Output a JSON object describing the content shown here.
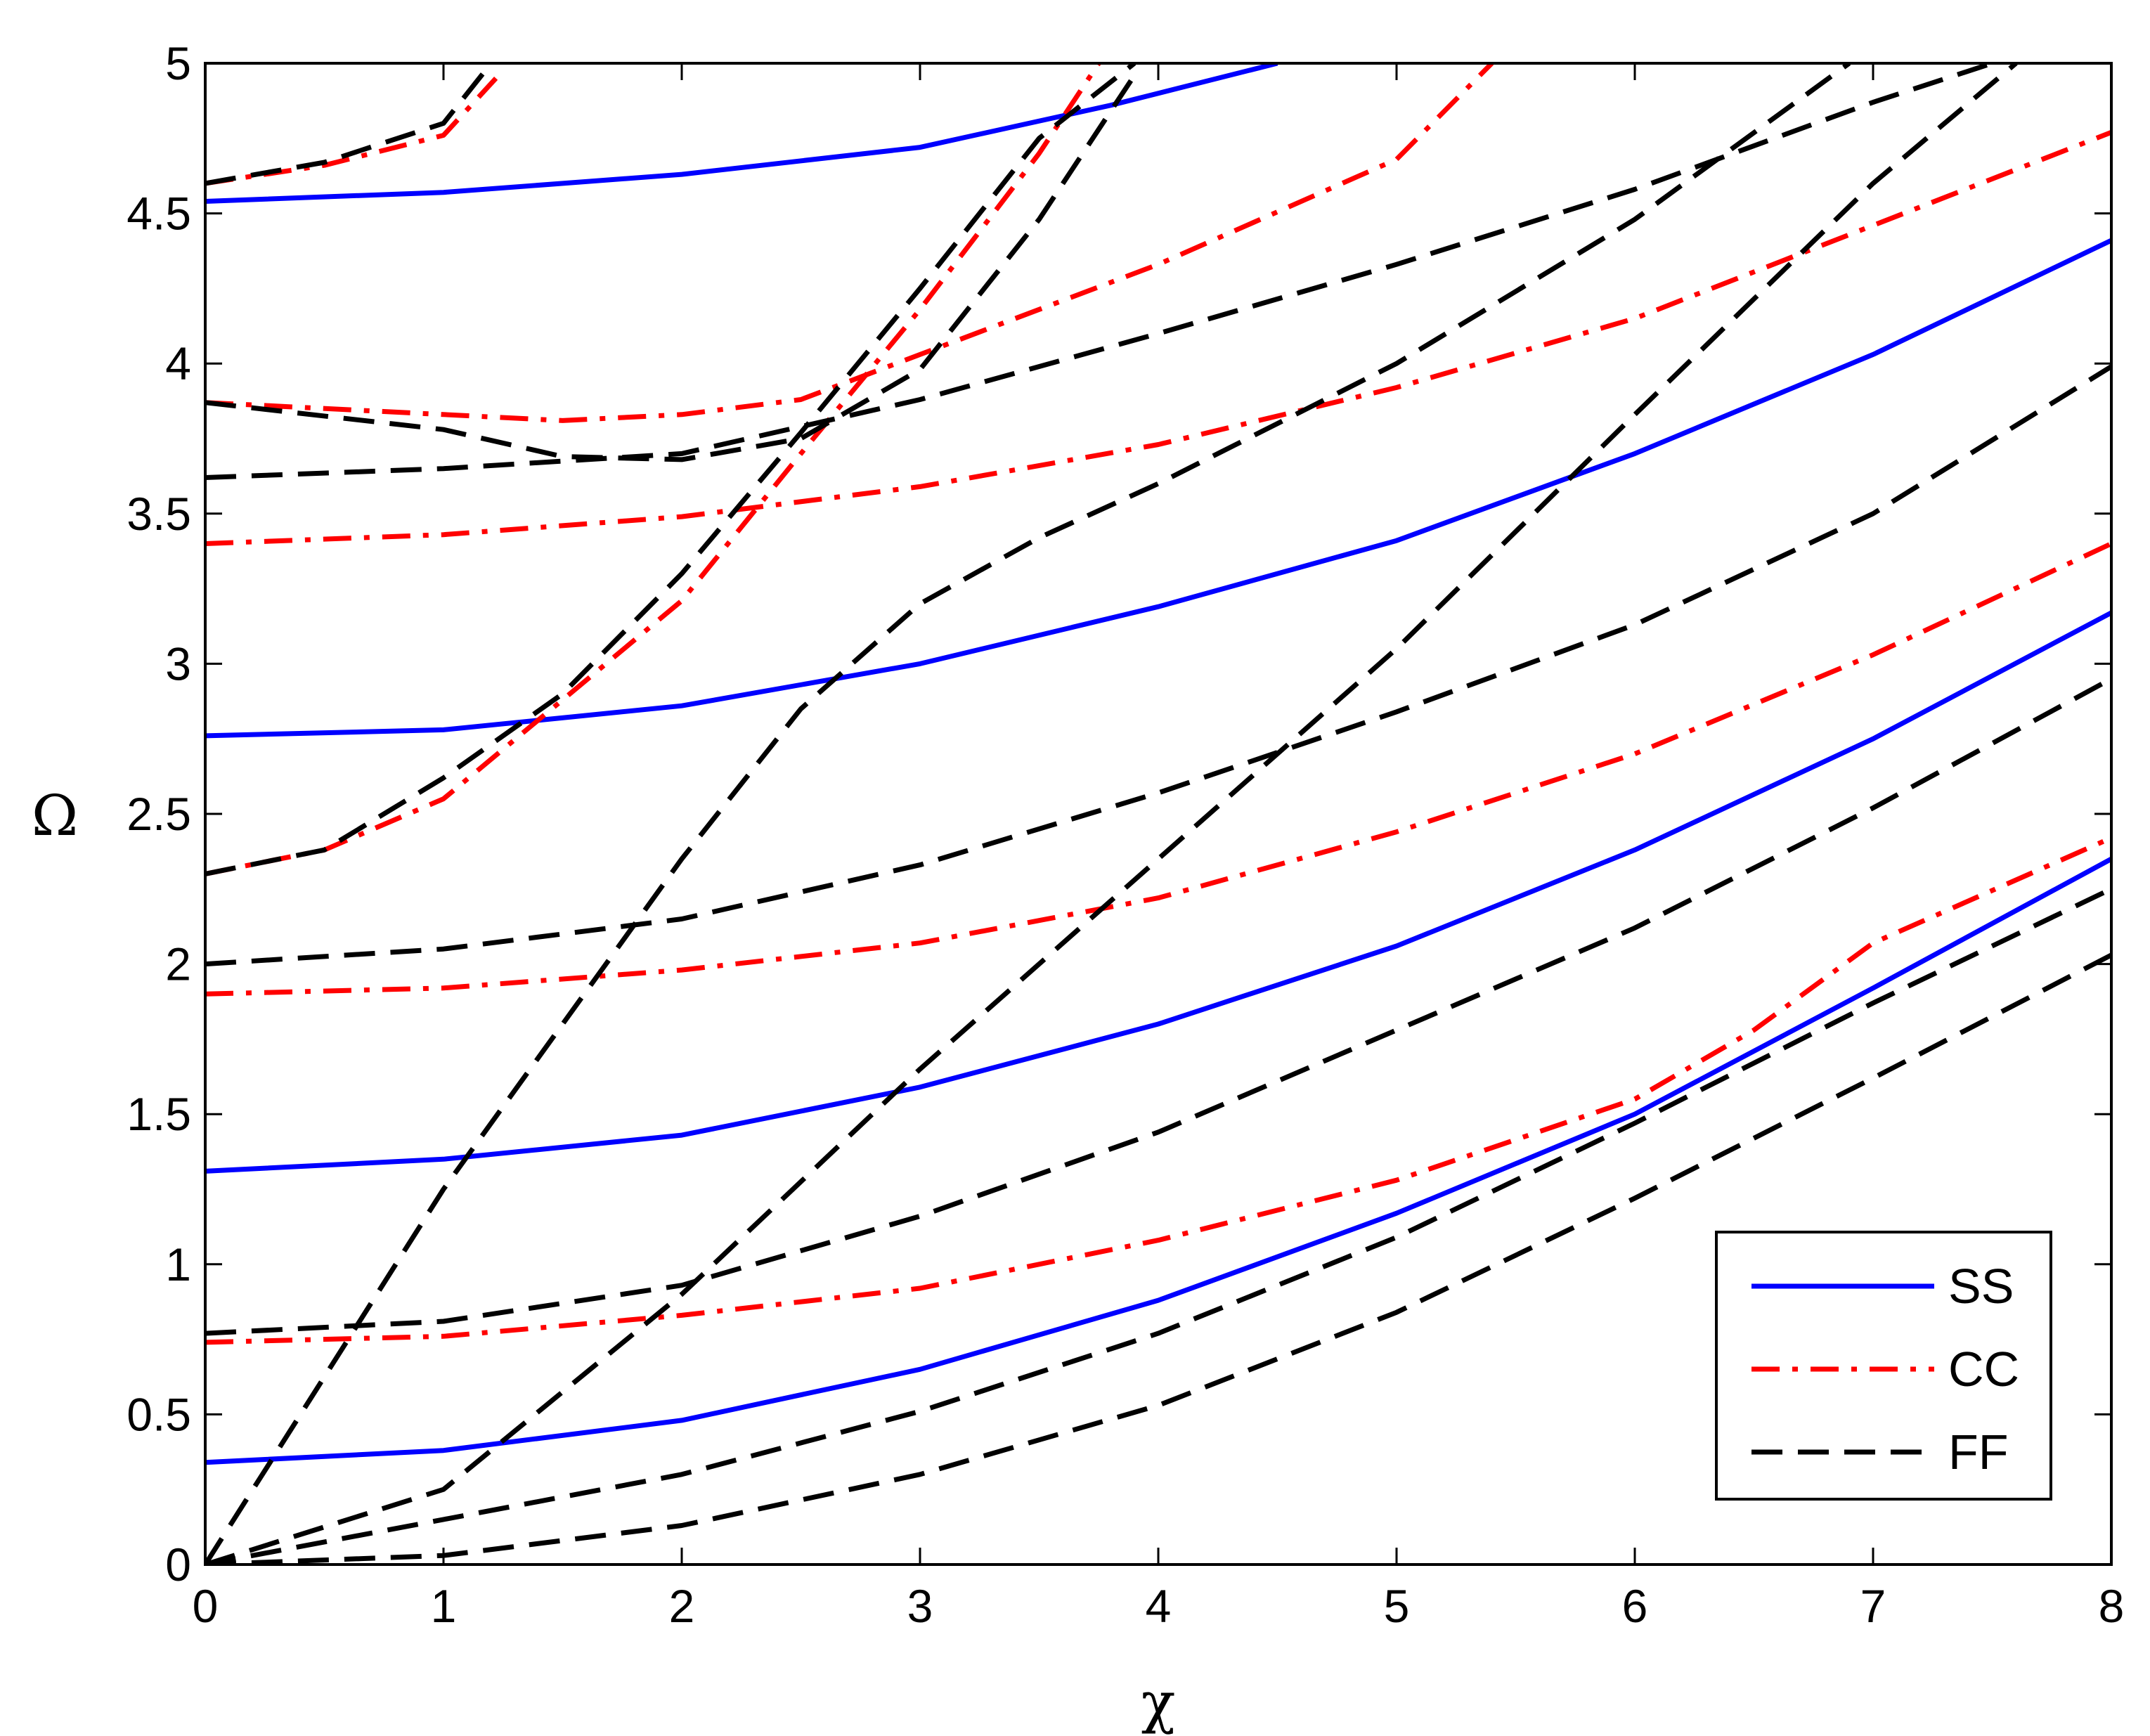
{
  "chart_data": {
    "type": "line",
    "xlabel": "χ",
    "ylabel": "Ω",
    "xlim": [
      0,
      8
    ],
    "ylim": [
      0,
      5
    ],
    "xticks": [
      0,
      1,
      2,
      3,
      4,
      5,
      6,
      7,
      8
    ],
    "yticks": [
      0,
      0.5,
      1,
      1.5,
      2,
      2.5,
      3,
      3.5,
      4,
      4.5,
      5
    ],
    "grid": false,
    "legend_position": "bottom-right",
    "legend": [
      {
        "label": "SS",
        "color": "#0000ff",
        "dash": "solid"
      },
      {
        "label": "CC",
        "color": "#ff0000",
        "dash": "dashdot"
      },
      {
        "label": "FF",
        "color": "#000000",
        "dash": "dashed"
      }
    ],
    "series": [
      {
        "group": "SS",
        "points": [
          [
            0,
            0.34
          ],
          [
            1,
            0.38
          ],
          [
            2,
            0.48
          ],
          [
            3,
            0.65
          ],
          [
            4,
            0.88
          ],
          [
            5,
            1.17
          ],
          [
            6,
            1.5
          ],
          [
            7,
            1.92
          ],
          [
            8,
            2.35
          ]
        ]
      },
      {
        "group": "SS",
        "points": [
          [
            0,
            1.31
          ],
          [
            1,
            1.35
          ],
          [
            2,
            1.43
          ],
          [
            3,
            1.59
          ],
          [
            4,
            1.8
          ],
          [
            5,
            2.06
          ],
          [
            6,
            2.38
          ],
          [
            7,
            2.75
          ],
          [
            8,
            3.17
          ]
        ]
      },
      {
        "group": "SS",
        "points": [
          [
            0,
            2.76
          ],
          [
            1,
            2.78
          ],
          [
            2,
            2.86
          ],
          [
            3,
            3.0
          ],
          [
            4,
            3.19
          ],
          [
            5,
            3.41
          ],
          [
            6,
            3.7
          ],
          [
            7,
            4.03
          ],
          [
            8,
            4.41
          ]
        ]
      },
      {
        "group": "SS",
        "points": [
          [
            0,
            4.54
          ],
          [
            1,
            4.57
          ],
          [
            2,
            4.63
          ],
          [
            3,
            4.72
          ],
          [
            3.8,
            4.86
          ],
          [
            4.5,
            5.0
          ]
        ]
      },
      {
        "group": "CC",
        "points": [
          [
            0,
            0.74
          ],
          [
            1,
            0.76
          ],
          [
            2,
            0.83
          ],
          [
            3,
            0.92
          ],
          [
            4,
            1.08
          ],
          [
            5,
            1.28
          ],
          [
            6,
            1.55
          ],
          [
            6.5,
            1.78
          ],
          [
            7,
            2.07
          ],
          [
            8,
            2.42
          ]
        ]
      },
      {
        "group": "CC",
        "points": [
          [
            0,
            1.9
          ],
          [
            1,
            1.92
          ],
          [
            2,
            1.98
          ],
          [
            3,
            2.07
          ],
          [
            4,
            2.22
          ],
          [
            5,
            2.44
          ],
          [
            6,
            2.7
          ],
          [
            7,
            3.03
          ],
          [
            8,
            3.4
          ]
        ]
      },
      {
        "group": "CC",
        "points": [
          [
            0,
            3.4
          ],
          [
            1,
            3.43
          ],
          [
            2,
            3.49
          ],
          [
            3,
            3.59
          ],
          [
            4,
            3.73
          ],
          [
            5,
            3.92
          ],
          [
            6,
            4.15
          ],
          [
            7,
            4.46
          ],
          [
            8,
            4.77
          ]
        ]
      },
      {
        "group": "CC",
        "points": [
          [
            0,
            3.87
          ],
          [
            1,
            3.83
          ],
          [
            1.5,
            3.81
          ],
          [
            2,
            3.83
          ],
          [
            2.5,
            3.88
          ],
          [
            3,
            4.03
          ],
          [
            4,
            4.33
          ],
          [
            5,
            4.68
          ],
          [
            5.4,
            5.0
          ]
        ]
      },
      {
        "group": "CC",
        "points": [
          [
            0,
            4.6
          ],
          [
            0.5,
            4.66
          ],
          [
            1,
            4.76
          ],
          [
            1.22,
            4.95
          ]
        ]
      },
      {
        "group": "CC",
        "points": [
          [
            0,
            2.3
          ],
          [
            0.5,
            2.38
          ],
          [
            1,
            2.55
          ],
          [
            1.5,
            2.88
          ],
          [
            2,
            3.21
          ],
          [
            2.5,
            3.7
          ],
          [
            3,
            4.18
          ],
          [
            3.5,
            4.7
          ],
          [
            3.75,
            5.0
          ]
        ]
      },
      {
        "group": "FF",
        "points": [
          [
            0,
            0.0
          ],
          [
            1,
            0.03
          ],
          [
            2,
            0.13
          ],
          [
            3,
            0.3
          ],
          [
            4,
            0.53
          ],
          [
            5,
            0.84
          ],
          [
            6,
            1.22
          ],
          [
            7,
            1.62
          ],
          [
            8,
            2.03
          ]
        ]
      },
      {
        "group": "FF",
        "points": [
          [
            0,
            0.0
          ],
          [
            1,
            0.15
          ],
          [
            2,
            0.3
          ],
          [
            3,
            0.51
          ],
          [
            4,
            0.77
          ],
          [
            5,
            1.09
          ],
          [
            6,
            1.47
          ],
          [
            7,
            1.87
          ],
          [
            8,
            2.25
          ]
        ]
      },
      {
        "group": "FF",
        "points": [
          [
            0,
            0.77
          ],
          [
            1,
            0.81
          ],
          [
            2,
            0.93
          ],
          [
            3,
            1.16
          ],
          [
            4,
            1.44
          ],
          [
            5,
            1.78
          ],
          [
            6,
            2.12
          ],
          [
            7,
            2.52
          ],
          [
            8,
            2.95
          ]
        ]
      },
      {
        "group": "FF",
        "points": [
          [
            0,
            2.0
          ],
          [
            1,
            2.05
          ],
          [
            2,
            2.15
          ],
          [
            3,
            2.33
          ],
          [
            4,
            2.57
          ],
          [
            5,
            2.84
          ],
          [
            6,
            3.13
          ],
          [
            7,
            3.5
          ],
          [
            8,
            3.99
          ]
        ]
      },
      {
        "group": "FF",
        "points": [
          [
            0,
            3.62
          ],
          [
            1,
            3.65
          ],
          [
            2,
            3.7
          ],
          [
            3,
            3.88
          ],
          [
            4,
            4.1
          ],
          [
            5,
            4.33
          ],
          [
            6,
            4.58
          ],
          [
            7,
            4.87
          ],
          [
            7.5,
            5.0
          ]
        ]
      },
      {
        "group": "FF",
        "points": [
          [
            0,
            0.0
          ],
          [
            1,
            1.25
          ],
          [
            2,
            2.35
          ],
          [
            2.5,
            2.85
          ],
          [
            3,
            3.2
          ],
          [
            3.5,
            3.42
          ],
          [
            4,
            3.6
          ],
          [
            5,
            4.0
          ],
          [
            6,
            4.48
          ],
          [
            6.9,
            5.0
          ]
        ]
      },
      {
        "group": "FF",
        "points": [
          [
            0,
            0.0
          ],
          [
            1,
            0.25
          ],
          [
            2,
            0.9
          ],
          [
            3,
            1.65
          ],
          [
            4,
            2.35
          ],
          [
            5,
            3.05
          ],
          [
            6,
            3.83
          ],
          [
            7,
            4.6
          ],
          [
            7.6,
            5.0
          ]
        ]
      },
      {
        "group": "FF",
        "points": [
          [
            0,
            2.3
          ],
          [
            0.5,
            2.38
          ],
          [
            1,
            2.62
          ],
          [
            1.5,
            2.9
          ],
          [
            2,
            3.3
          ],
          [
            2.5,
            3.77
          ],
          [
            3,
            4.25
          ],
          [
            3.5,
            4.75
          ],
          [
            3.9,
            5.0
          ]
        ]
      },
      {
        "group": "FF",
        "points": [
          [
            0,
            3.87
          ],
          [
            1,
            3.78
          ],
          [
            1.5,
            3.69
          ],
          [
            2,
            3.68
          ],
          [
            2.5,
            3.75
          ],
          [
            3,
            3.98
          ],
          [
            3.5,
            4.48
          ],
          [
            3.9,
            4.96
          ]
        ]
      },
      {
        "group": "FF",
        "points": [
          [
            0,
            4.6
          ],
          [
            0.5,
            4.67
          ],
          [
            1,
            4.8
          ],
          [
            1.2,
            5.0
          ]
        ]
      }
    ]
  }
}
